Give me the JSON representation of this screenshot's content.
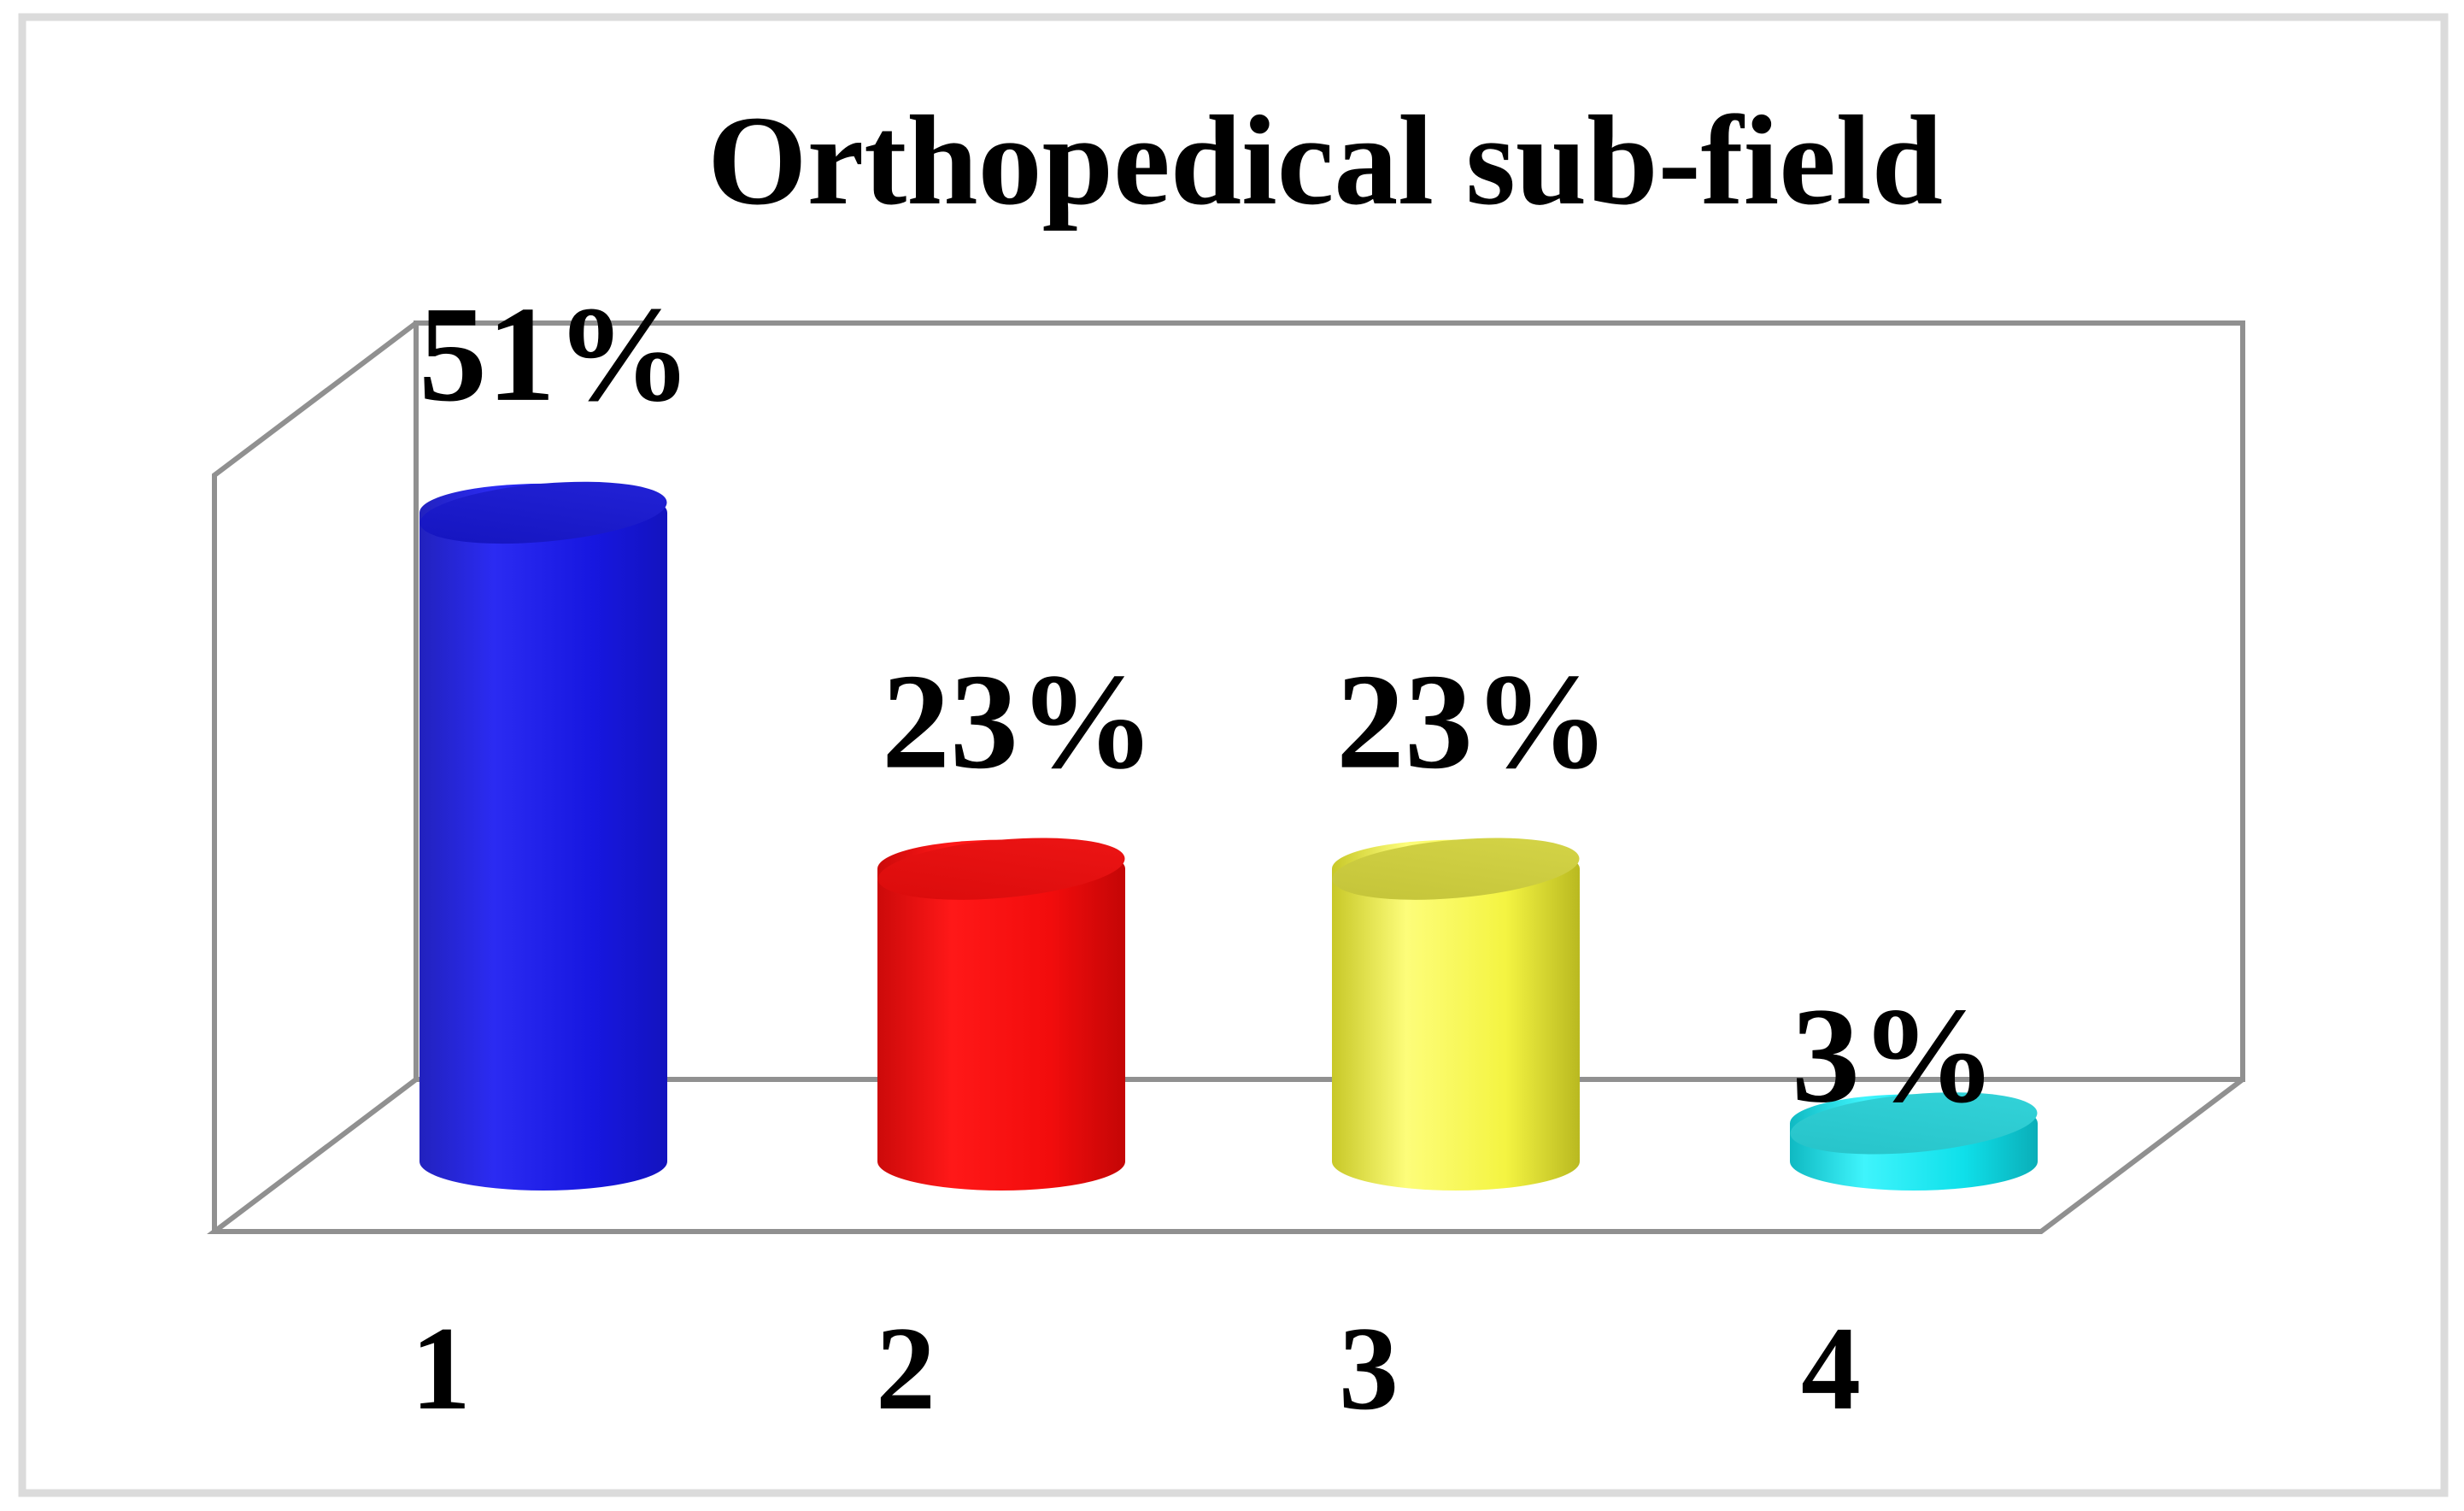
{
  "chart_data": {
    "type": "bar",
    "subtype": "3d-cylinder-column",
    "title": "Orthopedical sub-field",
    "categories": [
      "1",
      "2",
      "3",
      "4"
    ],
    "values": [
      51,
      23,
      23,
      3
    ],
    "value_labels": [
      "51%",
      "23%",
      "23%",
      "3%"
    ],
    "xlabel": "",
    "ylabel": "",
    "value_axis_visible": false,
    "gridlines": "none",
    "legend_position": "none",
    "series": [
      {
        "category": "1",
        "value": 51,
        "data_label": "51%",
        "color": "#1A1ACA",
        "body_gradient": [
          "#2222BE",
          "#2B2BF2",
          "#1717E0",
          "#1313BE"
        ],
        "top_gradient": [
          "#1414BE",
          "#2323D8"
        ]
      },
      {
        "category": "2",
        "value": 23,
        "data_label": "23%",
        "color": "#EE1111",
        "body_gradient": [
          "#CC0A0A",
          "#FF1818",
          "#F20C0C",
          "#C40606"
        ],
        "top_gradient": [
          "#D90B0B",
          "#EE1515"
        ]
      },
      {
        "category": "3",
        "value": 23,
        "data_label": "23%",
        "color": "#EDED44",
        "body_gradient": [
          "#C8C828",
          "#FDFD7A",
          "#F4F442",
          "#B9B920"
        ],
        "top_gradient": [
          "#C3C338",
          "#D5D548"
        ]
      },
      {
        "category": "4",
        "value": 3,
        "data_label": "3%",
        "color": "#17D8DE",
        "body_gradient": [
          "#0FB9C2",
          "#3FF4FC",
          "#0FE0EA",
          "#0AAEB8"
        ],
        "top_gradient": [
          "#26C2C8",
          "#33D4DA"
        ]
      }
    ],
    "colors": {
      "frame_line": "#909090",
      "outer_border": "#DBDBDB",
      "background": "#FFFFFF",
      "text": "#000000"
    }
  }
}
